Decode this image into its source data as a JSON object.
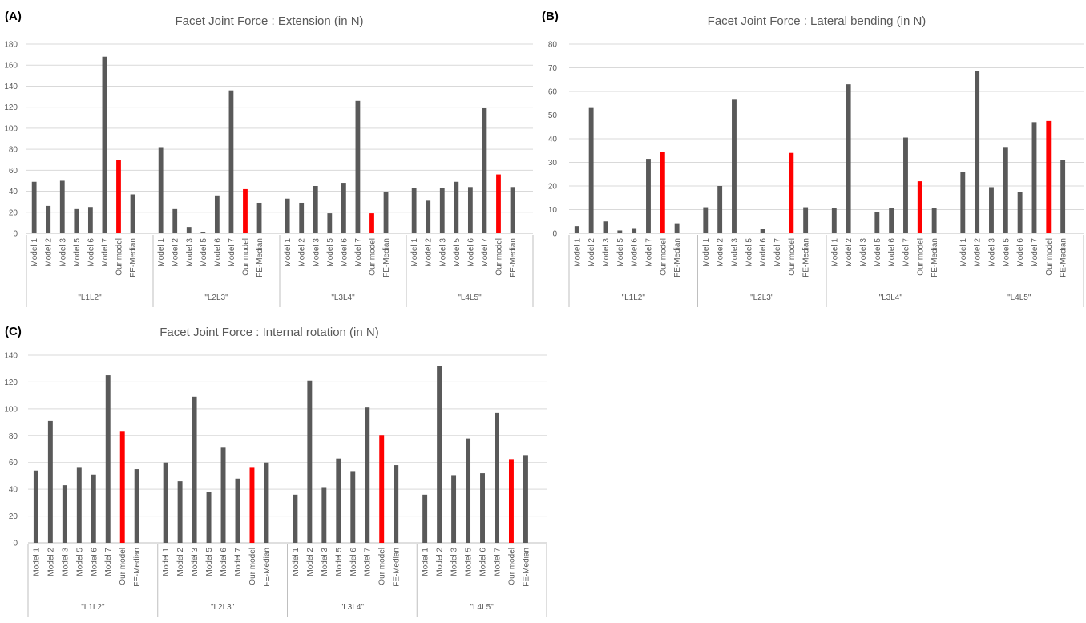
{
  "categories": [
    "Model 1",
    "Model 2",
    "Model 3",
    "Model 5",
    "Model 6",
    "Model 7",
    "Our model",
    "FE-Median"
  ],
  "groups": [
    "\"L1L2\"",
    "\"L2L3\"",
    "\"L3L4\"",
    "\"L4L5\""
  ],
  "colors": {
    "default_bar": "#595959",
    "highlight_bar": "#ff0000"
  },
  "highlight_category": "Our model",
  "chart_data": [
    {
      "panel": "(A)",
      "type": "bar",
      "title": "Facet Joint Force : Extension (in N)",
      "xlabel": "",
      "ylabel": "",
      "ylim": [
        0,
        180
      ],
      "ytick_step": 20,
      "grid": true,
      "values": [
        [
          49,
          26,
          50,
          23,
          25,
          168,
          70,
          37
        ],
        [
          82,
          23,
          6,
          1.5,
          36,
          136,
          42,
          29
        ],
        [
          33,
          29,
          45,
          19,
          48,
          126,
          19,
          39
        ],
        [
          43,
          31,
          43,
          49,
          44,
          119,
          56,
          44
        ]
      ]
    },
    {
      "panel": "(B)",
      "type": "bar",
      "title": "Facet Joint Force : Lateral bending  (in N)",
      "xlabel": "",
      "ylabel": "",
      "ylim": [
        0,
        80
      ],
      "ytick_step": 10,
      "grid": true,
      "values": [
        [
          3,
          53,
          5,
          1.2,
          2.2,
          31.5,
          34.5,
          4.2
        ],
        [
          11,
          20,
          56.5,
          0,
          1.8,
          0,
          34,
          11
        ],
        [
          10.5,
          63,
          0,
          9,
          10.5,
          40.5,
          22,
          10.5
        ],
        [
          26,
          68.5,
          19.5,
          36.5,
          17.5,
          47,
          47.5,
          31
        ]
      ]
    },
    {
      "panel": "(C)",
      "type": "bar",
      "title": "Facet Joint Force : Internal rotation (in N)",
      "xlabel": "",
      "ylabel": "",
      "ylim": [
        0,
        140
      ],
      "ytick_step": 20,
      "grid": true,
      "values": [
        [
          54,
          91,
          43,
          56,
          51,
          125,
          83,
          55
        ],
        [
          60,
          46,
          109,
          38,
          71,
          48,
          56,
          60
        ],
        [
          36,
          121,
          41,
          63,
          53,
          101,
          80,
          58
        ],
        [
          36,
          132,
          50,
          78,
          52,
          97,
          62,
          65
        ]
      ]
    }
  ]
}
